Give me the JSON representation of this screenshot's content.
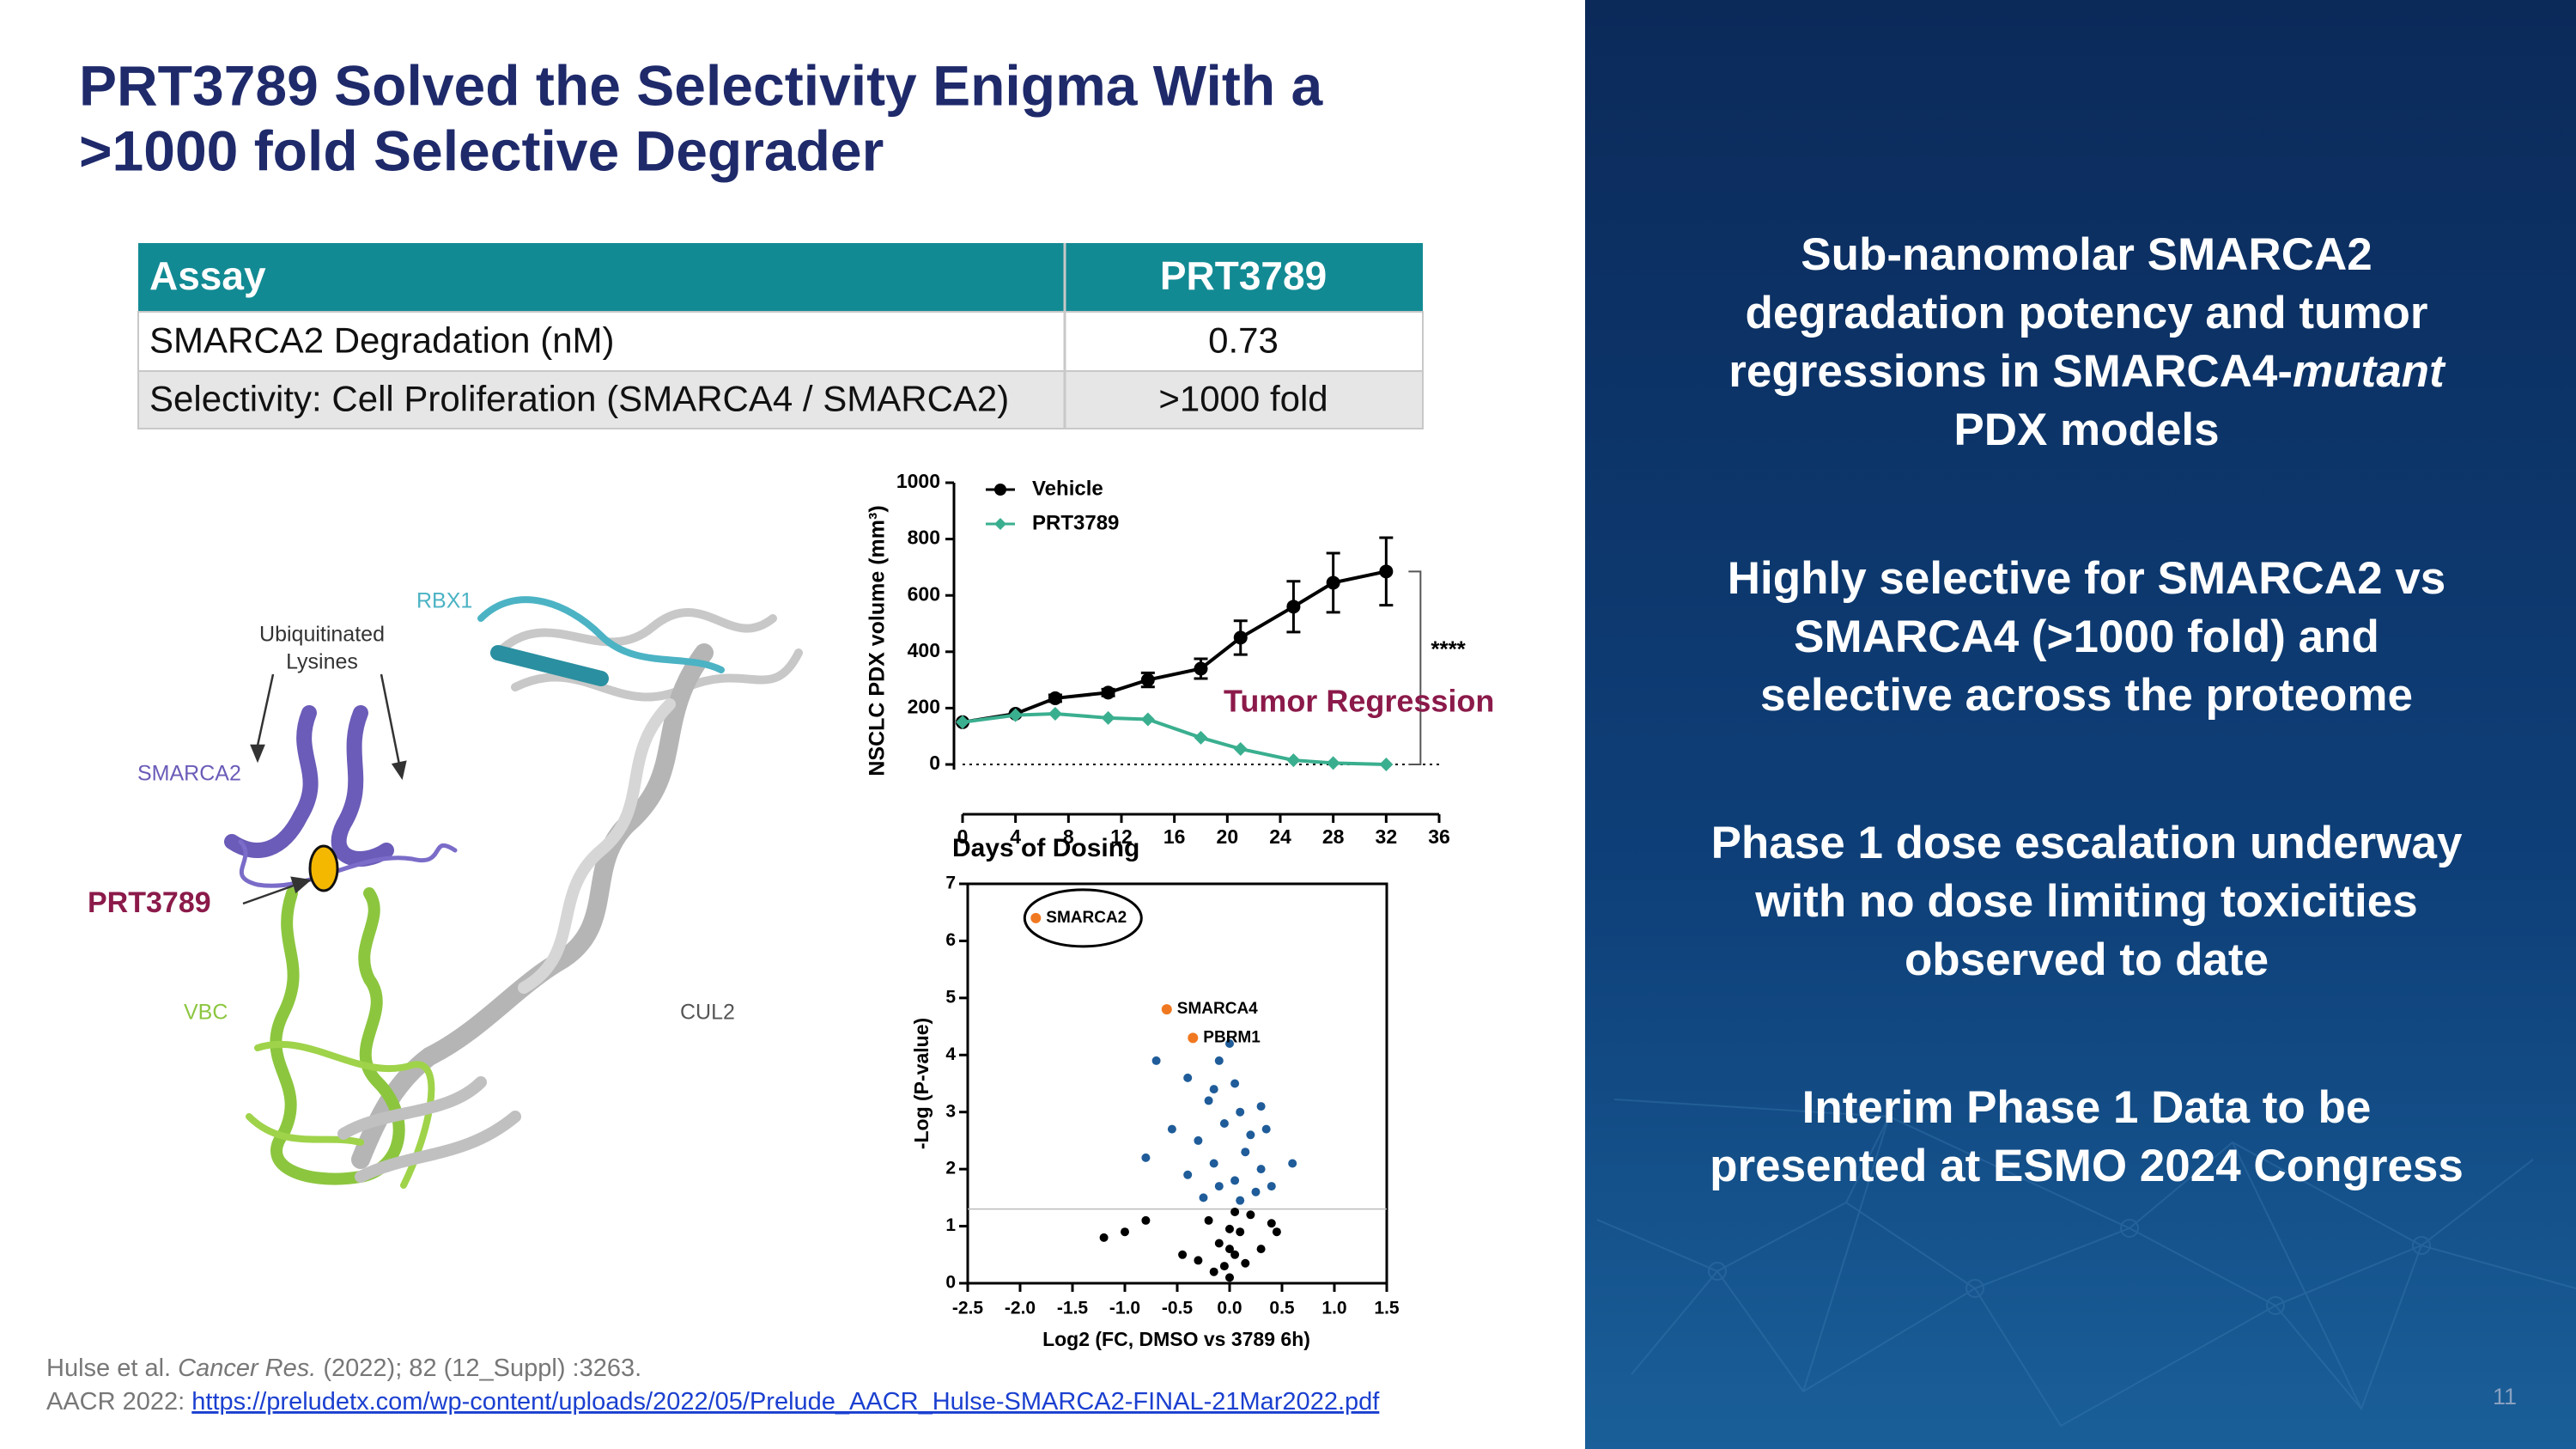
{
  "title": [
    "PRT3789 Solved the Selectivity Enigma With a",
    ">1000 fold Selective Degrader"
  ],
  "table": {
    "header": [
      "Assay",
      "PRT3789"
    ],
    "rows": [
      [
        "SMARCA2 Degradation (nM)",
        "0.73"
      ],
      [
        "Selectivity: Cell Proliferation (SMARCA4 / SMARCA2)",
        ">1000 fold"
      ]
    ]
  },
  "structure_labels": {
    "rbx1": "RBX1",
    "lysines": [
      "Ubiquitinated",
      "Lysines"
    ],
    "smarca2": "SMARCA2",
    "prt3789": "PRT3789",
    "vbc": "VBC",
    "cul2": "CUL2"
  },
  "line_chart": {
    "type": "line",
    "ylabel": "NSCLC PDX volume (mm³)",
    "xlabel": "Days of Dosing",
    "xlim": [
      0,
      36
    ],
    "xticks": [
      0,
      4,
      8,
      12,
      16,
      20,
      24,
      28,
      32,
      36
    ],
    "ylim": [
      0,
      1000
    ],
    "yticks": [
      0,
      200,
      400,
      600,
      800,
      1000
    ],
    "annotation": "Tumor Regression",
    "significance": "****",
    "series": [
      {
        "name": "Vehicle",
        "color": "#000000",
        "x": [
          0,
          4,
          7,
          11,
          14,
          18,
          21,
          25,
          28,
          32
        ],
        "values": [
          150,
          180,
          235,
          255,
          300,
          340,
          450,
          560,
          645,
          685
        ],
        "errors": [
          0,
          0,
          12,
          12,
          25,
          35,
          60,
          90,
          105,
          120
        ]
      },
      {
        "name": "PRT3789",
        "color": "#3aaf8f",
        "x": [
          0,
          4,
          7,
          11,
          14,
          18,
          21,
          25,
          28,
          32
        ],
        "values": [
          150,
          175,
          180,
          165,
          160,
          95,
          55,
          15,
          5,
          0
        ]
      }
    ]
  },
  "volcano": {
    "type": "scatter",
    "ylabel": "-Log (P-value)",
    "xlabel": "Log2 (FC, DMSO vs 3789 6h)",
    "xlim": [
      -2.5,
      1.5
    ],
    "xticks": [
      {
        "value": -2.5,
        "label": "-2.5"
      },
      {
        "value": -2,
        "label": "-2.0"
      },
      {
        "value": -1.5,
        "label": "-1.5"
      },
      {
        "value": -1,
        "label": "-1.0"
      },
      {
        "value": -0.5,
        "label": "-0.5"
      },
      {
        "value": 0,
        "label": "0.0"
      },
      {
        "value": 0.5,
        "label": "0.5"
      },
      {
        "value": 1,
        "label": "1.0"
      },
      {
        "value": 1.5,
        "label": "1.5"
      }
    ],
    "ylim": [
      0,
      7
    ],
    "yticks": [
      0,
      1,
      2,
      3,
      4,
      5,
      6,
      7
    ],
    "threshold": 1.3,
    "significant": {
      "color": "#1f5c99",
      "x": [
        -0.1,
        0.05,
        -0.2,
        0.1,
        -0.05,
        0.2,
        -0.3,
        0.15,
        -0.15,
        0.3,
        -0.4,
        0.05,
        -0.1,
        0.25,
        -0.25,
        0.1,
        -0.55,
        0.35,
        -0.8,
        -0.7,
        0.3,
        -0.4,
        0.0,
        0.6,
        -0.15,
        0.4
      ],
      "y": [
        3.9,
        3.5,
        3.2,
        3.0,
        2.8,
        2.6,
        2.5,
        2.3,
        2.1,
        2.0,
        1.9,
        1.8,
        1.7,
        1.6,
        1.5,
        1.45,
        2.7,
        2.7,
        2.2,
        3.9,
        3.1,
        3.6,
        4.2,
        2.1,
        3.4,
        1.7
      ]
    },
    "other": {
      "color": "#000000",
      "x": [
        0,
        -0.05,
        0.05,
        -0.1,
        0.1,
        -0.2,
        0.2,
        0,
        -0.3,
        0.3,
        -0.15,
        0.15,
        -1.0,
        -1.2,
        -0.8,
        0.45,
        0.4,
        -0.45,
        0,
        0.05
      ],
      "y": [
        0.1,
        0.3,
        0.5,
        0.7,
        0.9,
        1.1,
        1.2,
        0.6,
        0.4,
        0.6,
        0.2,
        0.35,
        0.9,
        0.8,
        1.1,
        0.9,
        1.05,
        0.5,
        0.95,
        1.25
      ]
    },
    "labeled": {
      "color": "#f07820",
      "points": [
        {
          "label": "SMARCA2",
          "x": -1.85,
          "y": 6.4
        },
        {
          "label": "SMARCA4",
          "x": -0.6,
          "y": 4.8
        },
        {
          "label": "PBRM1",
          "x": -0.35,
          "y": 4.3
        }
      ]
    }
  },
  "bullets": [
    [
      "Sub-nanomolar SMARCA2",
      "degradation potency and tumor",
      {
        "normal": "regressions in SMARCA4-",
        "italic": "mutant"
      },
      "PDX models"
    ],
    [
      "Highly selective for SMARCA2 vs",
      "SMARCA4 (>1000 fold) and",
      "selective across the proteome"
    ],
    [
      "Phase 1 dose escalation underway",
      "with no dose limiting toxicities",
      "observed to date"
    ],
    [
      "Interim Phase 1 Data to be",
      "presented at ESMO 2024 Congress"
    ]
  ],
  "footnote": [
    {
      "normal": "Hulse et al. ",
      "italic": "Cancer Res.",
      "rest": " (2022); 82 (12_Suppl) :3263."
    },
    {
      "normal": "AACR 2022: ",
      "link": "https://preludetx.com/wp-content/uploads/2022/05/Prelude_AACR_Hulse-SMARCA2-FINAL-21Mar2022.pdf"
    }
  ],
  "page_number": "11"
}
